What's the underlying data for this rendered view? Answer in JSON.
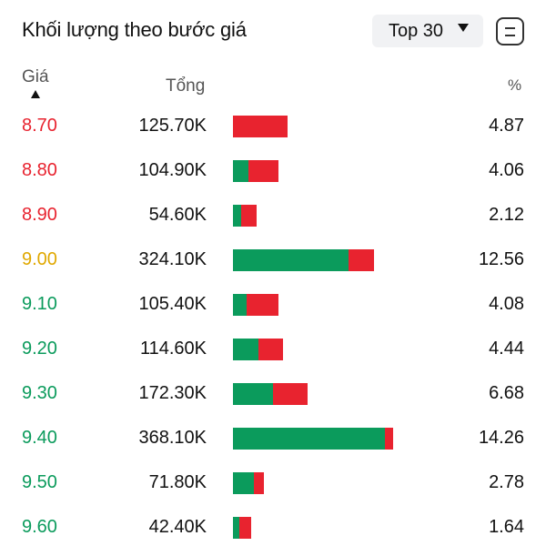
{
  "header": {
    "title": "Khối lượng theo bước giá",
    "top_select": "Top 30"
  },
  "columns": {
    "price": "Giá",
    "total": "Tổng",
    "percent": "%"
  },
  "colors": {
    "up": "#0b9b5c",
    "down": "#e8232f",
    "reference": "#e0a800"
  },
  "rows": [
    {
      "price": "8.70",
      "price_color": "#e8232f",
      "total": "125.70K",
      "percent": "4.87",
      "buy_ratio": 0.0
    },
    {
      "price": "8.80",
      "price_color": "#e8232f",
      "total": "104.90K",
      "percent": "4.06",
      "buy_ratio": 0.33
    },
    {
      "price": "8.90",
      "price_color": "#e8232f",
      "total": "54.60K",
      "percent": "2.12",
      "buy_ratio": 0.33
    },
    {
      "price": "9.00",
      "price_color": "#e0a800",
      "total": "324.10K",
      "percent": "12.56",
      "buy_ratio": 0.82
    },
    {
      "price": "9.10",
      "price_color": "#0b9b5c",
      "total": "105.40K",
      "percent": "4.08",
      "buy_ratio": 0.3
    },
    {
      "price": "9.20",
      "price_color": "#0b9b5c",
      "total": "114.60K",
      "percent": "4.44",
      "buy_ratio": 0.5
    },
    {
      "price": "9.30",
      "price_color": "#0b9b5c",
      "total": "172.30K",
      "percent": "6.68",
      "buy_ratio": 0.54
    },
    {
      "price": "9.40",
      "price_color": "#0b9b5c",
      "total": "368.10K",
      "percent": "14.26",
      "buy_ratio": 0.95
    },
    {
      "price": "9.50",
      "price_color": "#0b9b5c",
      "total": "71.80K",
      "percent": "2.78",
      "buy_ratio": 0.69
    },
    {
      "price": "9.60",
      "price_color": "#0b9b5c",
      "total": "42.40K",
      "percent": "1.64",
      "buy_ratio": 0.33
    }
  ]
}
